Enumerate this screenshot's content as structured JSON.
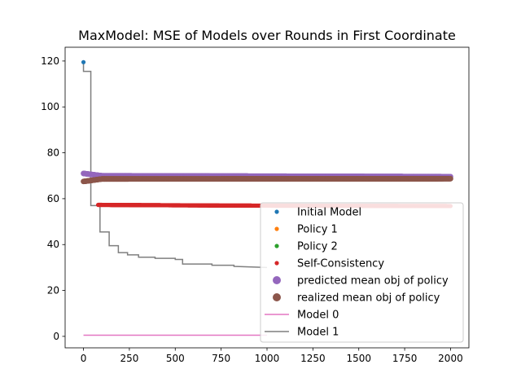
{
  "chart_data": {
    "type": "scatter",
    "title": "MaxModel: MSE of Models over Rounds in First Coordinate",
    "xlabel": "",
    "ylabel": "",
    "xlim": [
      -100,
      2100
    ],
    "ylim": [
      -5,
      126
    ],
    "x_ticks": [
      0,
      250,
      500,
      750,
      1000,
      1250,
      1500,
      1750,
      2000
    ],
    "y_ticks": [
      0,
      20,
      40,
      60,
      80,
      100,
      120
    ],
    "grid": false,
    "legend_placement": "lower-right",
    "series": [
      {
        "name": "Initial Model",
        "kind": "points",
        "color": "#1f77b4",
        "x": [
          0
        ],
        "y": [
          119.5
        ]
      },
      {
        "name": "Policy 1",
        "kind": "points",
        "color": "#ff7f0e",
        "x_range": [
          0,
          2000
        ],
        "y_level": 69.0
      },
      {
        "name": "Policy 2",
        "kind": "points",
        "color": "#2ca02c",
        "x_range": [
          0,
          2000
        ],
        "y_level": 69.0
      },
      {
        "name": "Self-Consistency",
        "kind": "band",
        "color": "#d62728",
        "x_range": [
          80,
          2000
        ],
        "y_levels": [
          [
            80,
            57.3
          ],
          [
            800,
            57.0
          ],
          [
            2000,
            56.8
          ]
        ]
      },
      {
        "name": "predicted mean obj of policy",
        "kind": "band",
        "color": "#9467bd",
        "x_range": [
          0,
          2000
        ],
        "y_levels": [
          [
            0,
            71.0
          ],
          [
            100,
            70.0
          ],
          [
            2000,
            69.6
          ]
        ]
      },
      {
        "name": "realized mean obj of policy",
        "kind": "band",
        "color": "#8c564b",
        "x_range": [
          0,
          2000
        ],
        "y_levels": [
          [
            0,
            67.5
          ],
          [
            100,
            68.6
          ],
          [
            2000,
            68.7
          ]
        ]
      },
      {
        "name": "Model 0",
        "kind": "line",
        "color": "#e377c2",
        "x": [
          0,
          1000
        ],
        "y": [
          0.5,
          0.5
        ]
      },
      {
        "name": "Model 1",
        "kind": "step",
        "color": "#7f7f7f",
        "x": [
          0,
          0,
          40,
          40,
          90,
          90,
          140,
          140,
          190,
          190,
          240,
          240,
          300,
          300,
          390,
          390,
          500,
          500,
          540,
          540,
          700,
          700,
          820,
          820,
          1000
        ],
        "y": [
          119.5,
          115.5,
          115.5,
          57.0,
          57.0,
          45.5,
          45.5,
          39.5,
          39.5,
          36.5,
          36.5,
          35.5,
          35.5,
          34.5,
          34.5,
          34.0,
          34.0,
          33.5,
          33.5,
          31.5,
          31.5,
          31.0,
          31.0,
          30.5,
          30.0
        ]
      }
    ]
  }
}
